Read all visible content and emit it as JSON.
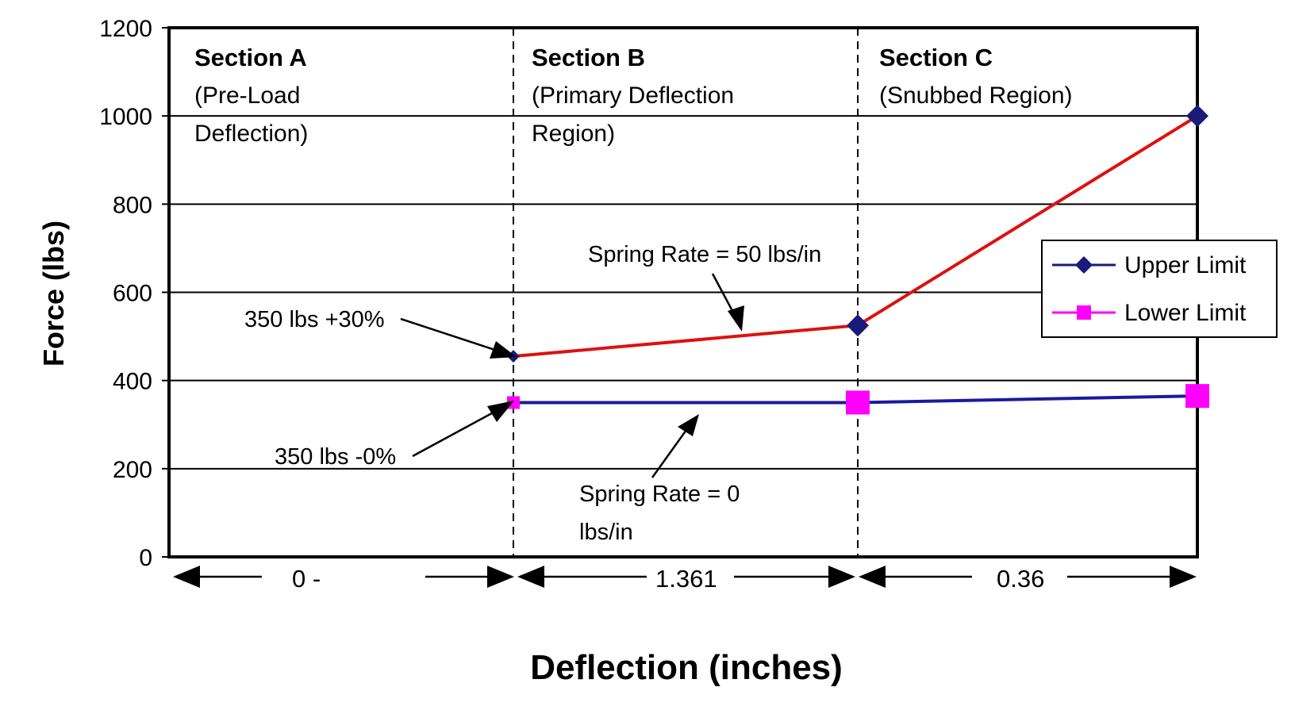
{
  "chart_data": {
    "type": "line",
    "x": [
      0,
      1,
      2,
      3
    ],
    "ylim": [
      0,
      1200
    ],
    "yticks": [
      "0",
      "200",
      "400",
      "600",
      "800",
      "1000",
      "1200"
    ],
    "ylabel": "Force (lbs)",
    "xlabel": "Deflection (inches)",
    "grid": true,
    "legend": "right",
    "series": [
      {
        "name": "Upper Limit",
        "x": [
          1,
          2,
          3
        ],
        "values": [
          455,
          525,
          1000
        ],
        "line_color": "#dd1111",
        "marker_color": "#1a1a7a",
        "marker": "diamond"
      },
      {
        "name": "Lower Limit",
        "x": [
          1,
          2,
          3
        ],
        "values": [
          350,
          350,
          365
        ],
        "line_color": "#1a1aa0",
        "marker_color": "#ff00ff",
        "marker": "square"
      }
    ],
    "sections": [
      {
        "title": "Section A",
        "subtitle1": "(Pre-Load",
        "subtitle2": "Deflection)"
      },
      {
        "title": "Section B",
        "subtitle1": "(Primary Deflection",
        "subtitle2": "Region)"
      },
      {
        "title": "Section C",
        "subtitle1": "(Snubbed Region)",
        "subtitle2": ""
      }
    ],
    "spans": [
      "0 -",
      "1.361",
      "0.36"
    ],
    "annotations": {
      "upper_start": "350 lbs +30%",
      "lower_start": "350 lbs -0%",
      "rate_b_upper": "Spring Rate = 50 lbs/in",
      "rate_b_lower_1": "Spring Rate = 0",
      "rate_b_lower_2": "lbs/in"
    }
  }
}
